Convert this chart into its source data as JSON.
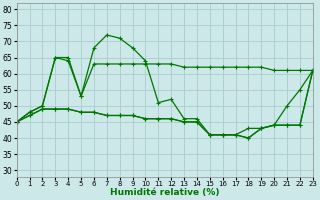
{
  "xlabel": "Humidité relative (%)",
  "xlim": [
    0,
    23
  ],
  "ylim": [
    28,
    82
  ],
  "yticks": [
    30,
    35,
    40,
    45,
    50,
    55,
    60,
    65,
    70,
    75,
    80
  ],
  "xticks": [
    0,
    1,
    2,
    3,
    4,
    5,
    6,
    7,
    8,
    9,
    10,
    11,
    12,
    13,
    14,
    15,
    16,
    17,
    18,
    19,
    20,
    21,
    22,
    23
  ],
  "background_color": "#cce8e8",
  "grid_color": "#aacccc",
  "line_color": "#007700",
  "series": [
    [
      45,
      48,
      50,
      65,
      65,
      53,
      68,
      72,
      71,
      68,
      64,
      51,
      52,
      46,
      46,
      41,
      41,
      41,
      40,
      43,
      44,
      50,
      55,
      61
    ],
    [
      45,
      48,
      50,
      65,
      64,
      53,
      63,
      63,
      63,
      63,
      63,
      63,
      63,
      62,
      62,
      62,
      62,
      62,
      62,
      62,
      61,
      61,
      61,
      61
    ],
    [
      45,
      47,
      49,
      49,
      49,
      48,
      48,
      47,
      47,
      47,
      46,
      46,
      46,
      45,
      45,
      41,
      41,
      41,
      40,
      43,
      44,
      44,
      44,
      61
    ],
    [
      45,
      47,
      49,
      49,
      49,
      48,
      48,
      47,
      47,
      47,
      46,
      46,
      46,
      45,
      45,
      41,
      41,
      41,
      43,
      43,
      44,
      44,
      44,
      61
    ]
  ]
}
